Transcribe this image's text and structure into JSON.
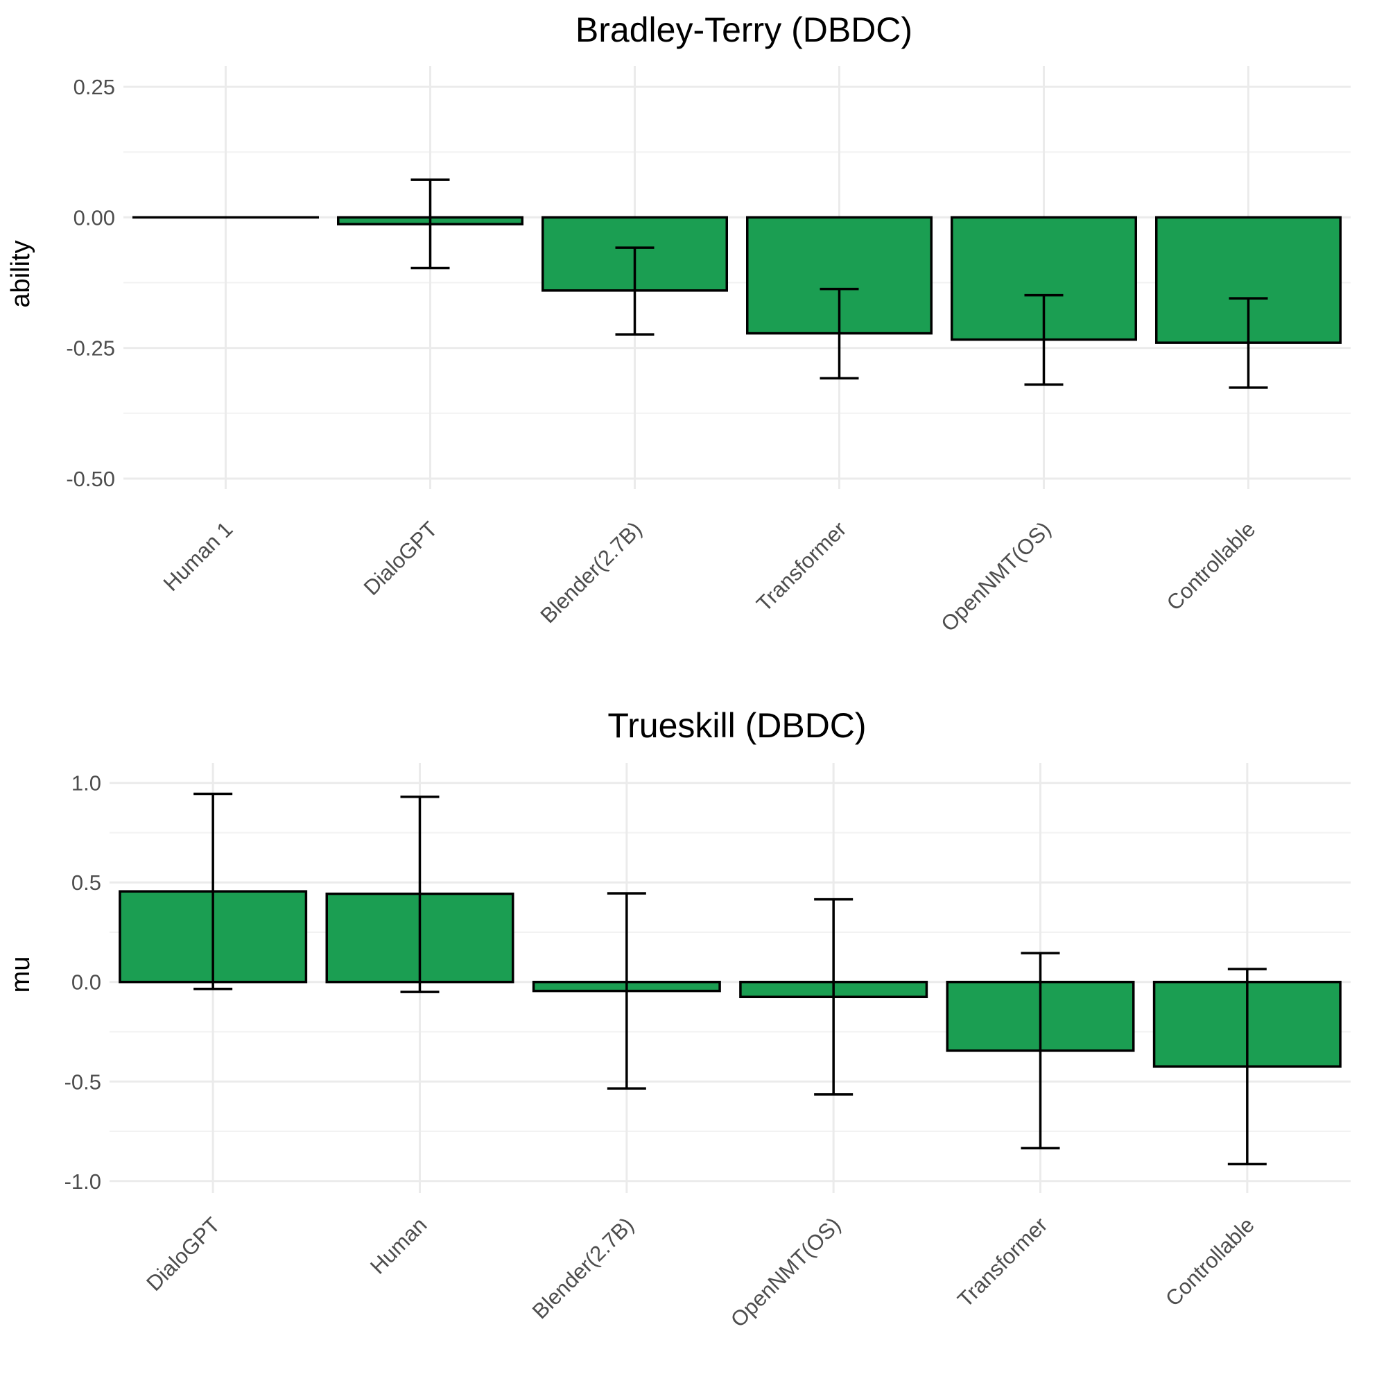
{
  "colors": {
    "bar_fill": "#1b9e52",
    "bar_stroke": "#000000"
  },
  "chart_data": [
    {
      "type": "bar",
      "title": "Bradley-Terry (DBDC)",
      "xlabel": "",
      "ylabel": "ability",
      "ylim": [
        -0.52,
        0.29
      ],
      "yticks": [
        0.25,
        0.0,
        -0.25,
        -0.5
      ],
      "ytick_labels": [
        "0.25",
        "0.00",
        "-0.25",
        "-0.50"
      ],
      "categories": [
        "Human 1",
        "DialoGPT",
        "Blender(2.7B)",
        "Transformer",
        "OpenNMT(OS)",
        "Controllable"
      ],
      "values": [
        0.0,
        -0.013,
        -0.14,
        -0.222,
        -0.234,
        -0.24
      ],
      "error_low": [
        0.0,
        -0.097,
        -0.224,
        -0.308,
        -0.32,
        -0.326
      ],
      "error_high": [
        0.0,
        0.072,
        -0.058,
        -0.137,
        -0.149,
        -0.155
      ],
      "grid": true
    },
    {
      "type": "bar",
      "title": "Trueskill (DBDC)",
      "xlabel": "",
      "ylabel": "mu",
      "ylim": [
        -1.06,
        1.1
      ],
      "yticks": [
        1.0,
        0.5,
        0.0,
        -0.5,
        -1.0
      ],
      "ytick_labels": [
        "1.0",
        "0.5",
        "0.0",
        "-0.5",
        "-1.0"
      ],
      "categories": [
        "DialoGPT",
        "Human",
        "Blender(2.7B)",
        "OpenNMT(OS)",
        "Transformer",
        "Controllable"
      ],
      "values": [
        0.455,
        0.443,
        -0.045,
        -0.075,
        -0.345,
        -0.425
      ],
      "error_low": [
        -0.035,
        -0.05,
        -0.535,
        -0.565,
        -0.835,
        -0.915
      ],
      "error_high": [
        0.945,
        0.93,
        0.445,
        0.415,
        0.145,
        0.065
      ],
      "grid": true
    }
  ]
}
